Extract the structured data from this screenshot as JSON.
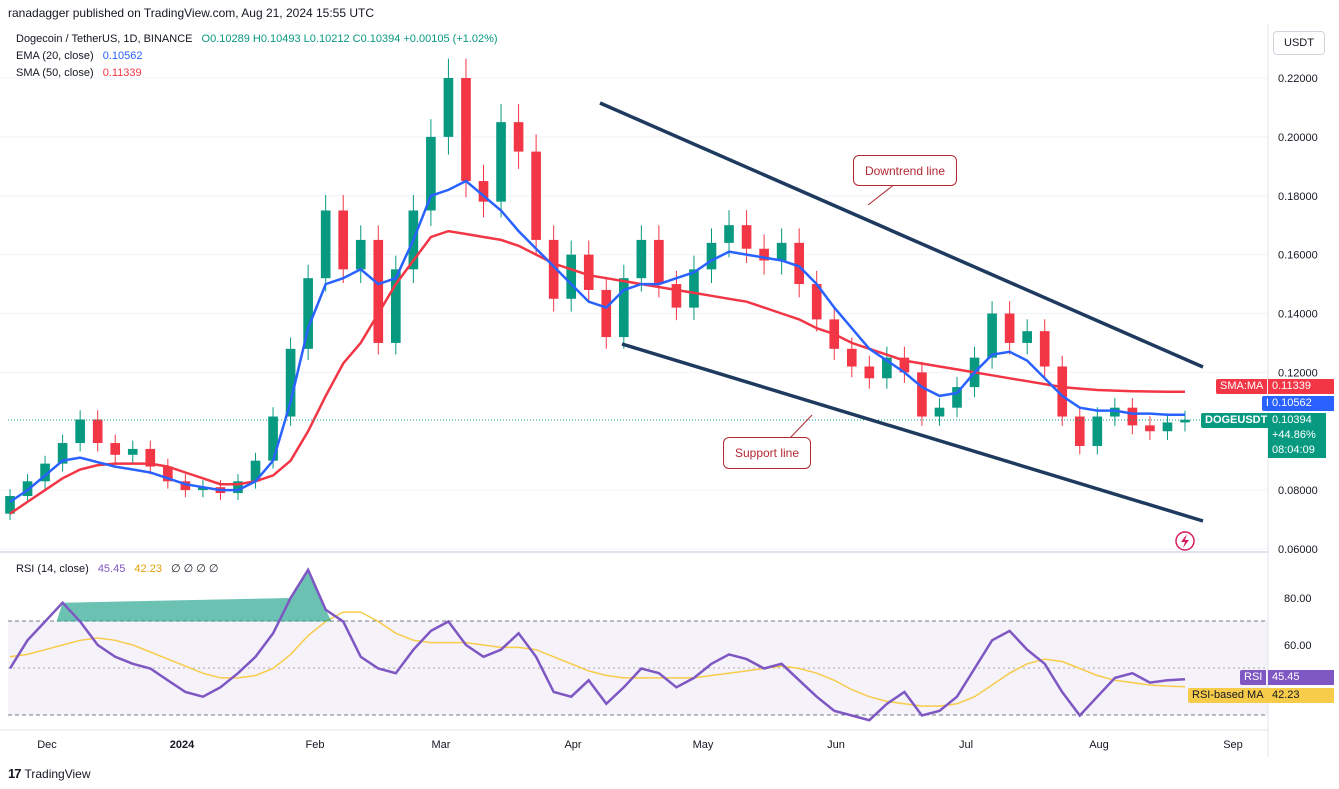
{
  "header": {
    "publisher": "ranadagger published on TradingView.com, Aug 21, 2024 15:55 UTC"
  },
  "legend": {
    "symbol": "Dogecoin / TetherUS, 1D, BINANCE",
    "ohlc": "O0.10289 H0.10493 L0.10212 C0.10394 +0.00105 (+1.02%)",
    "ema": {
      "label": "EMA (20, close)",
      "value": "0.10562",
      "color": "#2962ff"
    },
    "sma": {
      "label": "SMA (50, close)",
      "value": "0.11339",
      "color": "#f23645"
    },
    "rsi": {
      "label": "RSI (14, close)",
      "value": "45.45",
      "ma_value": "42.23",
      "extra": "∅ ∅ ∅ ∅"
    }
  },
  "currency": "USDT",
  "price_tags": {
    "smama": {
      "label": "SMA:MA",
      "value": "0.11339"
    },
    "ema": {
      "label": "EMA",
      "value": "0.10562"
    },
    "symbol": {
      "label": "DOGEUSDT",
      "value": "0.10394",
      "change": "+44.86%",
      "countdown": "08:04:09"
    },
    "rsi": {
      "label": "RSI",
      "value": "45.45"
    },
    "rsi_ma": {
      "label": "RSI-based MA",
      "value": "42.23"
    }
  },
  "annotations": {
    "downtrend": "Downtrend line",
    "support": "Support line"
  },
  "footer": {
    "brand": "TradingView"
  },
  "chart_data": {
    "type": "candlestick",
    "price_axis": {
      "min": 0.06,
      "max": 0.22,
      "ticks": [
        "0.22000",
        "0.20000",
        "0.18000",
        "0.16000",
        "0.14000",
        "0.12000",
        "0.08000",
        "0.06000"
      ]
    },
    "rsi_axis": {
      "ticks": [
        "80.00",
        "60.00"
      ],
      "band": [
        30,
        70
      ]
    },
    "time_axis": {
      "labels": [
        "Dec",
        "2024",
        "Feb",
        "Mar",
        "Apr",
        "May",
        "Jun",
        "Jul",
        "Aug",
        "Sep"
      ]
    },
    "candles": [
      [
        0.072,
        0.078
      ],
      [
        0.078,
        0.083
      ],
      [
        0.083,
        0.089
      ],
      [
        0.089,
        0.096
      ],
      [
        0.096,
        0.104
      ],
      [
        0.104,
        0.096
      ],
      [
        0.096,
        0.092
      ],
      [
        0.092,
        0.094
      ],
      [
        0.094,
        0.088
      ],
      [
        0.088,
        0.083
      ],
      [
        0.083,
        0.08
      ],
      [
        0.08,
        0.081
      ],
      [
        0.081,
        0.079
      ],
      [
        0.079,
        0.083
      ],
      [
        0.083,
        0.09
      ],
      [
        0.09,
        0.105
      ],
      [
        0.105,
        0.128
      ],
      [
        0.128,
        0.152
      ],
      [
        0.152,
        0.175
      ],
      [
        0.175,
        0.155
      ],
      [
        0.155,
        0.165
      ],
      [
        0.165,
        0.13
      ],
      [
        0.13,
        0.155
      ],
      [
        0.155,
        0.175
      ],
      [
        0.175,
        0.2
      ],
      [
        0.2,
        0.22
      ],
      [
        0.22,
        0.185
      ],
      [
        0.185,
        0.178
      ],
      [
        0.178,
        0.205
      ],
      [
        0.205,
        0.195
      ],
      [
        0.195,
        0.165
      ],
      [
        0.165,
        0.145
      ],
      [
        0.145,
        0.16
      ],
      [
        0.16,
        0.148
      ],
      [
        0.148,
        0.132
      ],
      [
        0.132,
        0.152
      ],
      [
        0.152,
        0.165
      ],
      [
        0.165,
        0.15
      ],
      [
        0.15,
        0.142
      ],
      [
        0.142,
        0.155
      ],
      [
        0.155,
        0.164
      ],
      [
        0.164,
        0.17
      ],
      [
        0.17,
        0.162
      ],
      [
        0.162,
        0.158
      ],
      [
        0.158,
        0.164
      ],
      [
        0.164,
        0.15
      ],
      [
        0.15,
        0.138
      ],
      [
        0.138,
        0.128
      ],
      [
        0.128,
        0.122
      ],
      [
        0.122,
        0.118
      ],
      [
        0.118,
        0.125
      ],
      [
        0.125,
        0.12
      ],
      [
        0.12,
        0.105
      ],
      [
        0.105,
        0.108
      ],
      [
        0.108,
        0.115
      ],
      [
        0.115,
        0.125
      ],
      [
        0.125,
        0.14
      ],
      [
        0.14,
        0.13
      ],
      [
        0.13,
        0.134
      ],
      [
        0.134,
        0.122
      ],
      [
        0.122,
        0.105
      ],
      [
        0.105,
        0.095
      ],
      [
        0.095,
        0.105
      ],
      [
        0.105,
        0.108
      ],
      [
        0.108,
        0.102
      ],
      [
        0.102,
        0.1
      ],
      [
        0.1,
        0.103
      ],
      [
        0.103,
        0.1039
      ]
    ],
    "ema20": [
      0.076,
      0.08,
      0.085,
      0.09,
      0.091,
      0.0895,
      0.088,
      0.087,
      0.086,
      0.084,
      0.082,
      0.081,
      0.08,
      0.08,
      0.083,
      0.09,
      0.11,
      0.135,
      0.15,
      0.152,
      0.155,
      0.15,
      0.152,
      0.165,
      0.18,
      0.182,
      0.185,
      0.18,
      0.175,
      0.168,
      0.162,
      0.156,
      0.15,
      0.144,
      0.142,
      0.148,
      0.15,
      0.15,
      0.152,
      0.154,
      0.158,
      0.161,
      0.16,
      0.159,
      0.158,
      0.156,
      0.15,
      0.142,
      0.135,
      0.128,
      0.124,
      0.12,
      0.115,
      0.112,
      0.113,
      0.12,
      0.126,
      0.127,
      0.124,
      0.118,
      0.112,
      0.108,
      0.107,
      0.107,
      0.106,
      0.106,
      0.1056,
      0.1056
    ],
    "sma50": [
      0.072,
      0.076,
      0.08,
      0.084,
      0.087,
      0.0885,
      0.089,
      0.089,
      0.089,
      0.088,
      0.086,
      0.084,
      0.082,
      0.082,
      0.083,
      0.085,
      0.09,
      0.1,
      0.112,
      0.123,
      0.13,
      0.14,
      0.15,
      0.158,
      0.166,
      0.168,
      0.167,
      0.166,
      0.165,
      0.163,
      0.16,
      0.157,
      0.155,
      0.153,
      0.152,
      0.151,
      0.15,
      0.149,
      0.148,
      0.147,
      0.146,
      0.145,
      0.144,
      0.142,
      0.14,
      0.138,
      0.135,
      0.133,
      0.13,
      0.128,
      0.126,
      0.124,
      0.123,
      0.122,
      0.121,
      0.12,
      0.119,
      0.118,
      0.117,
      0.116,
      0.115,
      0.1145,
      0.114,
      0.1138,
      0.1136,
      0.1135,
      0.1134,
      0.1134
    ],
    "rsi": [
      50,
      62,
      70,
      78,
      70,
      60,
      55,
      52,
      50,
      45,
      40,
      38,
      42,
      48,
      55,
      65,
      80,
      92,
      75,
      70,
      55,
      50,
      48,
      58,
      66,
      70,
      60,
      55,
      58,
      65,
      55,
      40,
      38,
      45,
      35,
      42,
      50,
      48,
      42,
      46,
      52,
      56,
      54,
      50,
      52,
      45,
      38,
      32,
      30,
      28,
      35,
      40,
      30,
      32,
      38,
      50,
      62,
      66,
      58,
      52,
      40,
      30,
      38,
      46,
      48,
      44,
      45,
      45.45
    ],
    "rsi_ma": [
      55,
      56,
      58,
      60,
      62,
      63,
      62,
      60,
      57,
      54,
      51,
      48,
      46,
      46,
      47,
      50,
      56,
      64,
      70,
      74,
      74,
      70,
      65,
      62,
      61,
      61,
      61,
      60,
      59,
      59,
      58,
      55,
      52,
      49,
      47,
      46,
      46,
      46,
      46,
      46,
      47,
      48,
      49,
      50,
      51,
      50,
      48,
      45,
      41,
      38,
      36,
      35,
      34,
      34,
      35,
      38,
      43,
      48,
      52,
      54,
      53,
      50,
      47,
      45,
      44,
      43,
      42.5,
      42.23
    ]
  }
}
